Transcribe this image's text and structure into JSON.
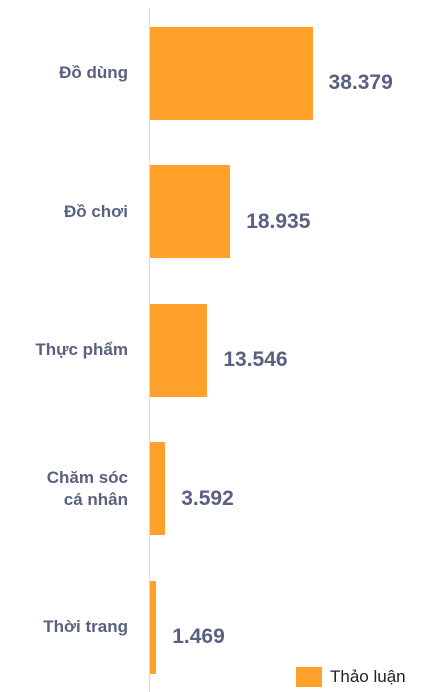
{
  "chart_data": {
    "type": "bar",
    "orientation": "horizontal",
    "categories": [
      "Đồ dùng",
      "Đồ chơi",
      "Thực phẩm",
      "Chăm sóc cá nhân",
      "Thời trang"
    ],
    "series": [
      {
        "name": "Thảo luận",
        "color": "#ffa12b",
        "values": [
          38379,
          18935,
          13546,
          3592,
          1469
        ],
        "value_labels": [
          "38.379",
          "18.935",
          "13.546",
          "3.592",
          "1.469"
        ]
      }
    ],
    "xlim": [
      0,
      68000
    ],
    "legend": "bottom-right"
  }
}
